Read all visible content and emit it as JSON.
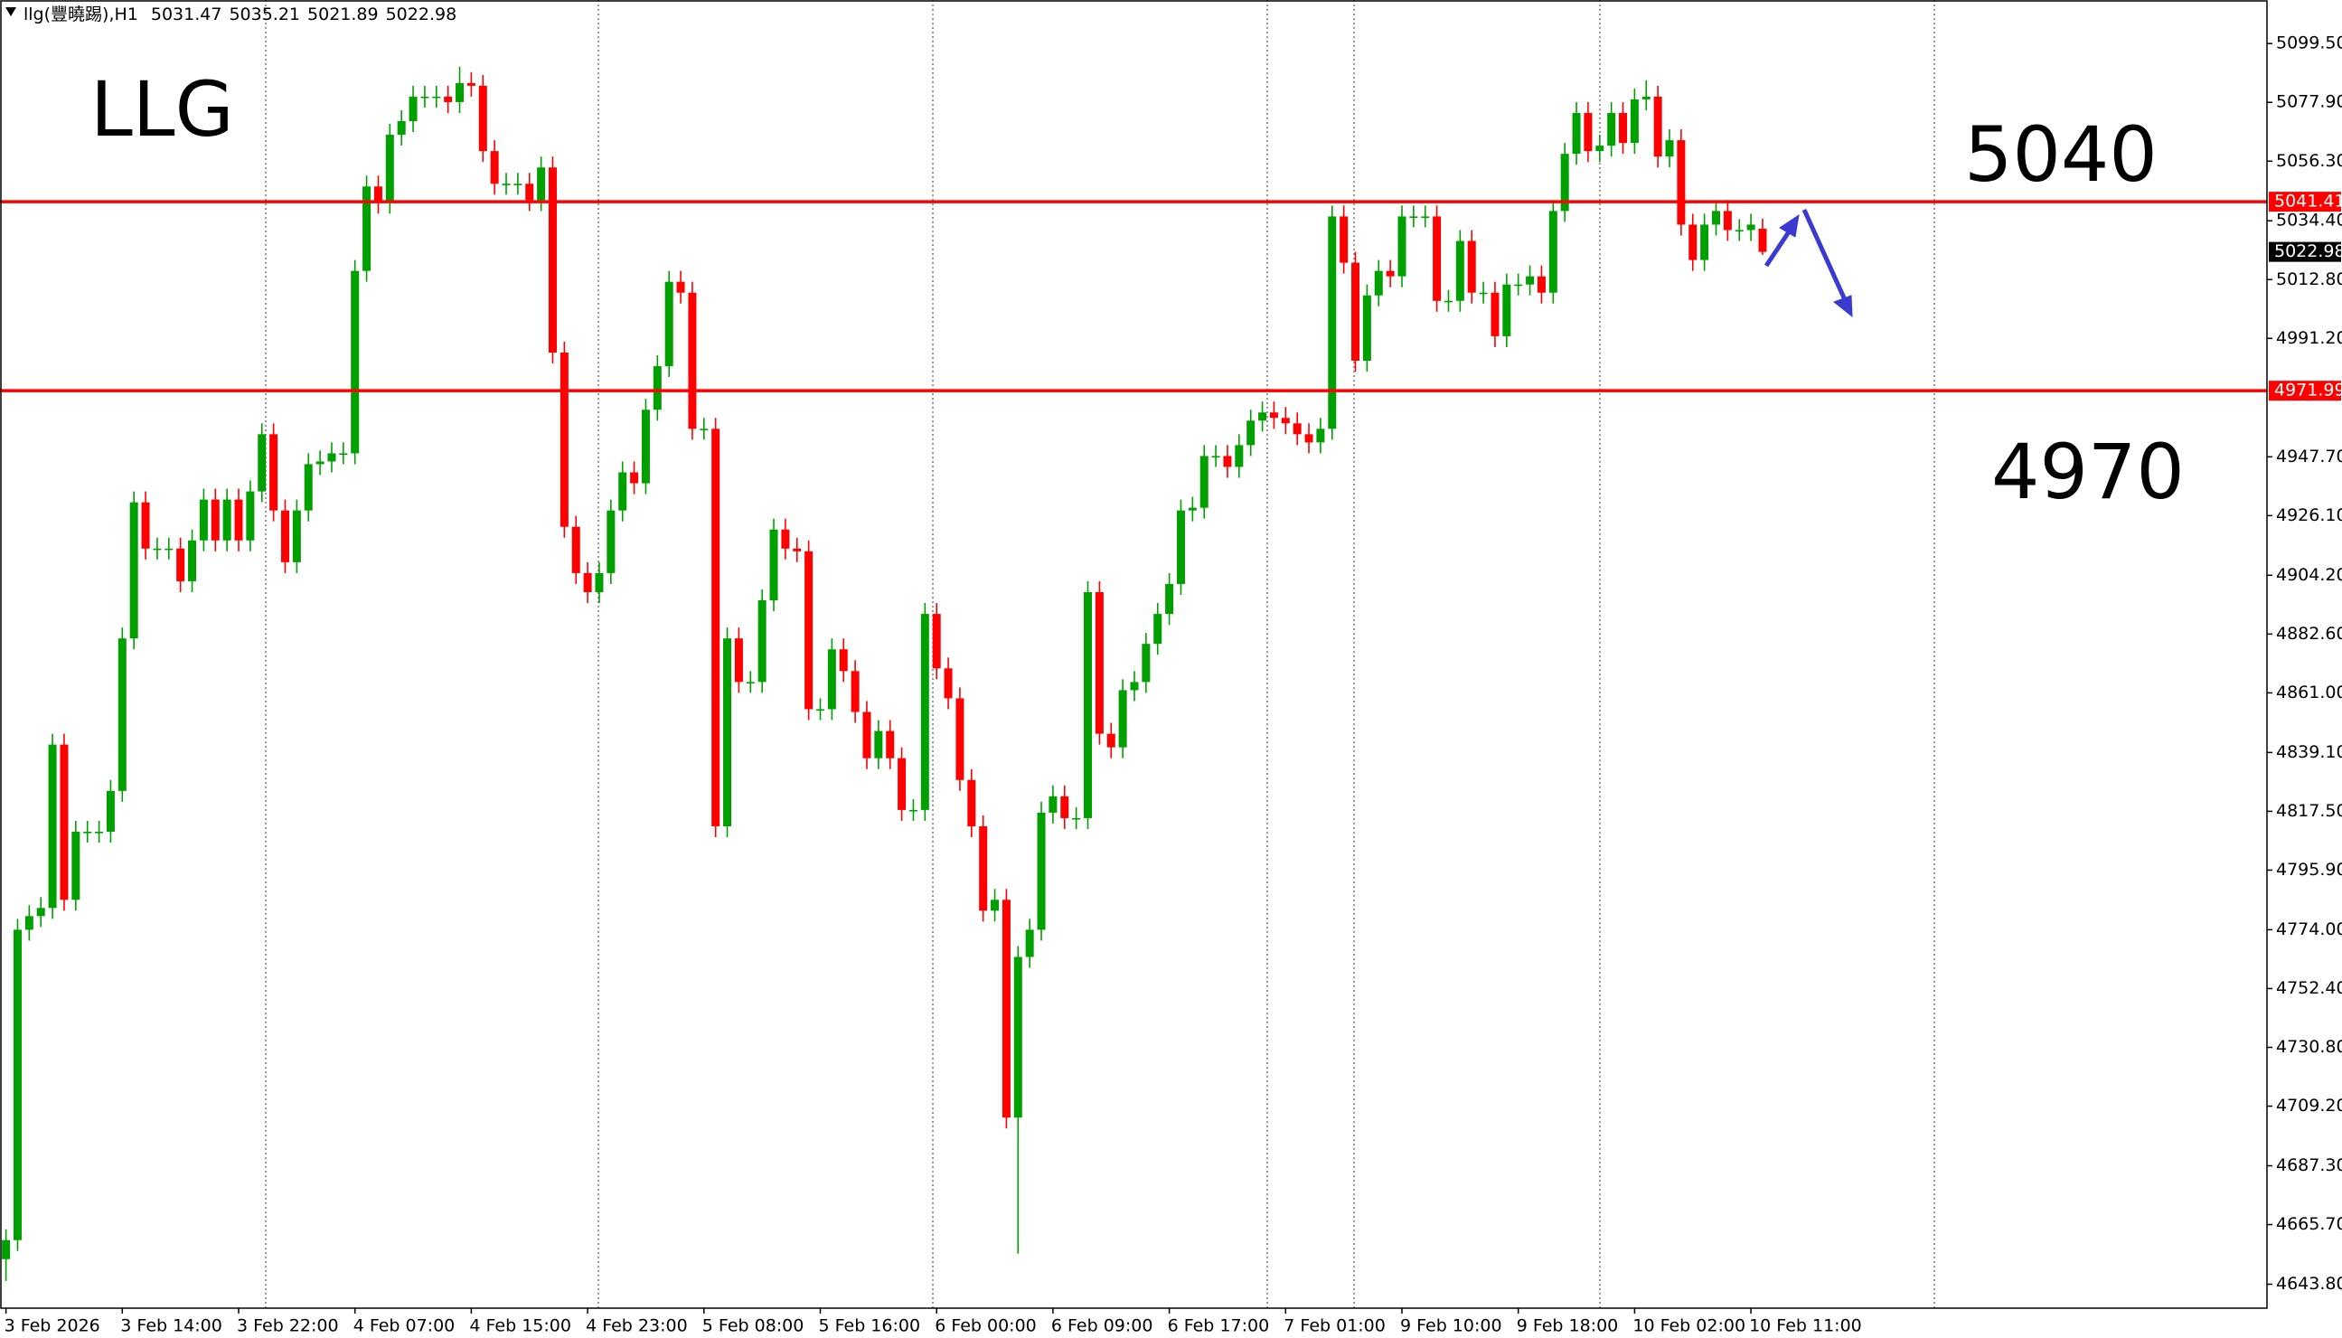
{
  "chart_data": {
    "type": "candlestick",
    "title": "llg(豐曉踢),H1",
    "annotations": [
      "LLG",
      "5040",
      "4970"
    ],
    "up_color": "#00a000",
    "down_color": "#ff0000",
    "level_color": "#ff0000",
    "levels": [
      5041.41,
      4971.99
    ],
    "grid": false,
    "ylim": [
      4635.0,
      5115.5
    ],
    "yticks": [
      {
        "value": 5099.5,
        "label": "5099.50"
      },
      {
        "value": 5077.9,
        "label": "5077.90"
      },
      {
        "value": 5056.3,
        "label": "5056.30"
      },
      {
        "value": 5034.4,
        "label": "5034.40"
      },
      {
        "value": 5012.8,
        "label": "5012.80"
      },
      {
        "value": 4991.2,
        "label": "4991.20"
      },
      {
        "value": 4947.7,
        "label": "4947.70"
      },
      {
        "value": 4926.1,
        "label": "4926.10"
      },
      {
        "value": 4904.2,
        "label": "4904.20"
      },
      {
        "value": 4882.6,
        "label": "4882.60"
      },
      {
        "value": 4861,
        "label": "4861.00"
      },
      {
        "value": 4839.1,
        "label": "4839.10"
      },
      {
        "value": 4817.5,
        "label": "4817.50"
      },
      {
        "value": 4795.9,
        "label": "4795.90"
      },
      {
        "value": 4774,
        "label": "4774.00"
      },
      {
        "value": 4752.4,
        "label": "4752.40"
      },
      {
        "value": 4730.8,
        "label": "4730.80"
      },
      {
        "value": 4709.2,
        "label": "4709.20"
      },
      {
        "value": 4687.3,
        "label": "4687.30"
      },
      {
        "value": 4665.7,
        "label": "4665.70"
      },
      {
        "value": 4643.8,
        "label": "4643.80"
      }
    ],
    "categories": [
      "3 Feb 2026",
      null,
      null,
      null,
      null,
      null,
      null,
      null,
      null,
      null,
      "3 Feb 14:00",
      null,
      null,
      null,
      null,
      null,
      null,
      null,
      null,
      null,
      "3 Feb 22:00",
      null,
      null,
      null,
      null,
      null,
      null,
      null,
      null,
      null,
      "4 Feb 07:00",
      null,
      null,
      null,
      null,
      null,
      null,
      null,
      null,
      null,
      "4 Feb 15:00",
      null,
      null,
      null,
      null,
      null,
      null,
      null,
      null,
      null,
      "4 Feb 23:00",
      null,
      null,
      null,
      null,
      null,
      null,
      null,
      null,
      null,
      "5 Feb 08:00",
      null,
      null,
      null,
      null,
      null,
      null,
      null,
      null,
      null,
      "5 Feb 16:00",
      null,
      null,
      null,
      null,
      null,
      null,
      null,
      null,
      null,
      "6 Feb 00:00",
      null,
      null,
      null,
      null,
      null,
      null,
      null,
      null,
      null,
      "6 Feb 09:00",
      null,
      null,
      null,
      null,
      null,
      null,
      null,
      null,
      null,
      "6 Feb 17:00",
      null,
      null,
      null,
      null,
      null,
      null,
      null,
      null,
      null,
      "7 Feb 01:00",
      null,
      null,
      null,
      null,
      null,
      null,
      null,
      null,
      null,
      "9 Feb 10:00",
      null,
      null,
      null,
      null,
      null,
      null,
      null,
      null,
      null,
      "9 Feb 18:00",
      null,
      null,
      null,
      null,
      null,
      null,
      null,
      null,
      null,
      "10 Feb 02:00",
      null,
      null,
      null,
      null,
      null,
      null,
      null,
      null,
      null,
      "10 Feb 11:00",
      null
    ],
    "open": [
      4653,
      4660,
      4774,
      4779,
      4782,
      4842,
      4785,
      4810,
      4810,
      4810,
      4825,
      4881,
      4931,
      4914,
      4914,
      4914,
      4902,
      4917,
      4932,
      4917,
      4932,
      4917,
      4935,
      4956,
      4928,
      4909,
      4928,
      4945,
      4946,
      4949,
      4949,
      5016,
      5047,
      5041,
      5066,
      5071,
      5080,
      5080,
      5080,
      5078,
      5085,
      5084,
      5060,
      5048,
      5048,
      5048,
      5042,
      5054,
      4986,
      4922,
      4905,
      4898,
      4905,
      4928,
      4942,
      4938,
      4965,
      4981,
      5012,
      5008,
      4958,
      4958,
      4812,
      4881,
      4865,
      4865,
      4895,
      4921,
      4914,
      4913,
      4855,
      4855,
      4877,
      4869,
      4854,
      4837,
      4847,
      4837,
      4818,
      4818,
      4890,
      4870,
      4859,
      4829,
      4812,
      4781,
      4785,
      4705,
      4764,
      4774,
      4817,
      4823,
      4815,
      4815,
      4898,
      4846,
      4841,
      4862,
      4865,
      4879,
      4890,
      4901,
      4928,
      4929,
      4948,
      4948,
      4944,
      4952,
      4961,
      4964,
      4962,
      4960,
      4956,
      4953,
      4958,
      5036,
      5019,
      4983,
      5007,
      5016,
      5014,
      5036,
      5036,
      5036,
      5005,
      5005,
      5027,
      5008,
      5008,
      4992,
      5011,
      5011,
      5014,
      5008,
      5038,
      5059,
      5074,
      5060,
      5062,
      5074,
      5063,
      5079,
      5080,
      5058,
      5064,
      5033,
      5020,
      5033,
      5038,
      5031,
      5031,
      5031.47
    ],
    "high": [
      4664,
      4778,
      4783,
      4786,
      4846,
      4846,
      4814,
      4814,
      4814,
      4829,
      4885,
      4935,
      4935,
      4918,
      4918,
      4918,
      4921,
      4936,
      4936,
      4936,
      4936,
      4939,
      4960,
      4960,
      4932,
      4932,
      4949,
      4950,
      4953,
      4953,
      5020,
      5051,
      5051,
      5070,
      5075,
      5084,
      5084,
      5084,
      5084,
      5091,
      5089,
      5088,
      5064,
      5052,
      5052,
      5052,
      5058,
      5058,
      4990,
      4926,
      4909,
      4909,
      4932,
      4946,
      4946,
      4969,
      4985,
      5016,
      5016,
      5012,
      4962,
      4962,
      4885,
      4885,
      4869,
      4899,
      4925,
      4925,
      4918,
      4917,
      4859,
      4881,
      4881,
      4873,
      4858,
      4851,
      4851,
      4841,
      4822,
      4894,
      4894,
      4874,
      4863,
      4833,
      4816,
      4789,
      4789,
      4768,
      4778,
      4821,
      4827,
      4827,
      4819,
      4902,
      4902,
      4850,
      4866,
      4869,
      4883,
      4894,
      4905,
      4932,
      4933,
      4952,
      4952,
      4952,
      4956,
      4965,
      4968,
      4968,
      4966,
      4964,
      4960,
      4962,
      5040,
      5040,
      5023,
      5011,
      5020,
      5020,
      5040,
      5040,
      5040,
      5040,
      5009,
      5031,
      5031,
      5012,
      5012,
      5015,
      5015,
      5018,
      5018,
      5042,
      5063,
      5078,
      5078,
      5066,
      5078,
      5078,
      5083,
      5086,
      5084,
      5068,
      5068,
      5037,
      5037,
      5042,
      5042,
      5035,
      5037,
      5035.21
    ],
    "low": [
      4645,
      4656,
      4770,
      4775,
      4778,
      4781,
      4781,
      4806,
      4806,
      4806,
      4821,
      4877,
      4910,
      4910,
      4910,
      4898,
      4898,
      4913,
      4913,
      4913,
      4913,
      4913,
      4931,
      4924,
      4905,
      4905,
      4924,
      4941,
      4942,
      4945,
      4945,
      5012,
      5037,
      5037,
      5062,
      5067,
      5076,
      5076,
      5074,
      5074,
      5080,
      5056,
      5044,
      5044,
      5044,
      5038,
      5038,
      4982,
      4918,
      4901,
      4894,
      4894,
      4901,
      4924,
      4934,
      4934,
      4961,
      4977,
      5004,
      4954,
      4954,
      4808,
      4808,
      4861,
      4861,
      4861,
      4891,
      4910,
      4909,
      4851,
      4851,
      4851,
      4865,
      4850,
      4833,
      4833,
      4833,
      4814,
      4814,
      4814,
      4866,
      4855,
      4825,
      4808,
      4777,
      4777,
      4701,
      4655,
      4760,
      4770,
      4813,
      4811,
      4811,
      4811,
      4842,
      4837,
      4837,
      4858,
      4861,
      4875,
      4886,
      4897,
      4924,
      4925,
      4944,
      4940,
      4940,
      4948,
      4957,
      4958,
      4956,
      4952,
      4949,
      4949,
      4954,
      5015,
      4979,
      4979,
      5003,
      5010,
      5010,
      5032,
      5032,
      5001,
      5001,
      5001,
      5004,
      5004,
      4988,
      4988,
      5007,
      5007,
      5004,
      5004,
      5034,
      5055,
      5056,
      5056,
      5058,
      5059,
      5059,
      5075,
      5054,
      5054,
      5029,
      5016,
      5016,
      5029,
      5027,
      5027,
      5027,
      5021.89
    ],
    "close": [
      4660,
      4774,
      4779,
      4782,
      4842,
      4785,
      4810,
      4810,
      4810,
      4825,
      4881,
      4931,
      4914,
      4914,
      4914,
      4902,
      4917,
      4932,
      4917,
      4932,
      4917,
      4935,
      4956,
      4928,
      4909,
      4928,
      4945,
      4946,
      4949,
      4949,
      5016,
      5047,
      5041,
      5066,
      5071,
      5080,
      5080,
      5080,
      5078,
      5085,
      5084,
      5060,
      5048,
      5048,
      5048,
      5042,
      5054,
      4986,
      4922,
      4905,
      4898,
      4905,
      4928,
      4942,
      4938,
      4965,
      4981,
      5012,
      5008,
      4958,
      4958,
      4812,
      4881,
      4865,
      4865,
      4895,
      4921,
      4914,
      4913,
      4855,
      4855,
      4877,
      4869,
      4854,
      4837,
      4847,
      4837,
      4818,
      4818,
      4890,
      4870,
      4859,
      4829,
      4812,
      4781,
      4785,
      4705,
      4764,
      4774,
      4817,
      4823,
      4815,
      4815,
      4898,
      4846,
      4841,
      4862,
      4865,
      4879,
      4890,
      4901,
      4928,
      4929,
      4948,
      4948,
      4944,
      4952,
      4961,
      4964,
      4962,
      4960,
      4956,
      4953,
      4958,
      5036,
      5019,
      4983,
      5007,
      5016,
      5014,
      5036,
      5036,
      5036,
      5005,
      5005,
      5027,
      5008,
      5008,
      4992,
      5011,
      5011,
      5014,
      5008,
      5038,
      5059,
      5074,
      5060,
      5062,
      5074,
      5063,
      5079,
      5080,
      5058,
      5064,
      5033,
      5020,
      5033,
      5038,
      5031,
      5031,
      5033,
      5022.98
    ]
  }
}
